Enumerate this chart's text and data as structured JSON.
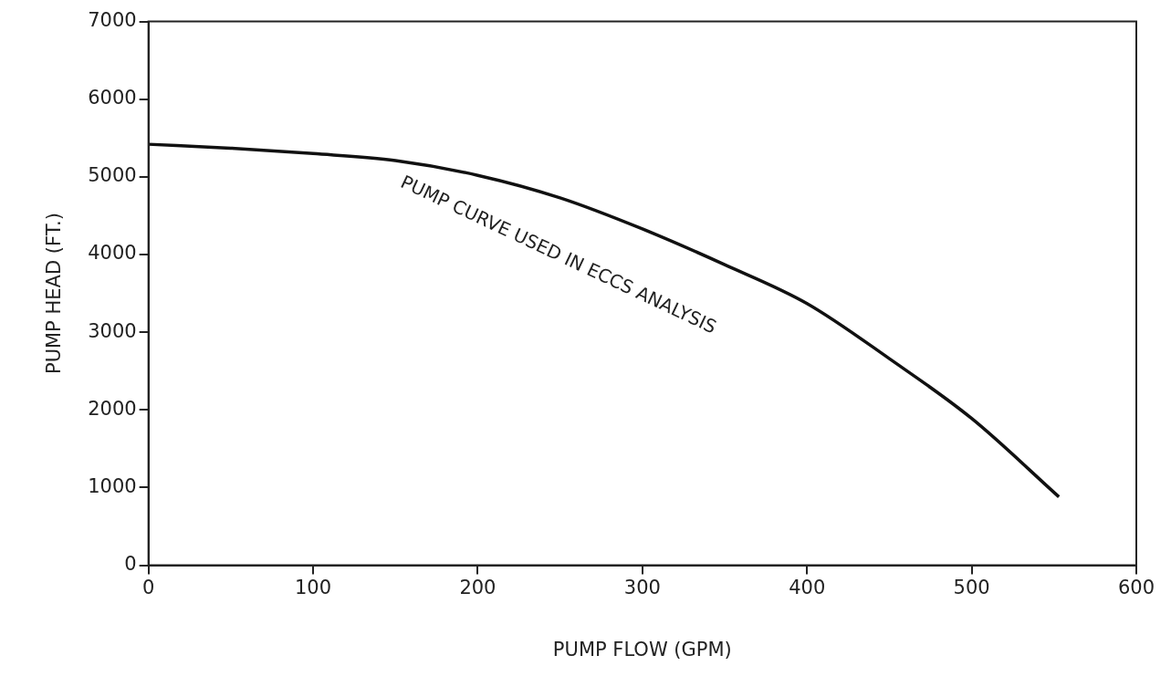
{
  "chart_data": {
    "type": "line",
    "xlabel": "PUMP FLOW (GPM)",
    "ylabel": "PUMP HEAD (FT.)",
    "x": [
      0,
      50,
      100,
      150,
      200,
      250,
      300,
      350,
      400,
      450,
      500,
      553
    ],
    "series": [
      {
        "color": "#111111",
        "values": [
          5420,
          5370,
          5300,
          5210,
          5020,
          4730,
          4330,
          3870,
          3370,
          2660,
          1890,
          880
        ]
      }
    ],
    "annotations": [
      "PUMP CURVE USED IN ECCS ANALYSIS"
    ],
    "xlim": [
      0,
      600
    ],
    "xticks": [
      0,
      100,
      200,
      300,
      400,
      500,
      600
    ],
    "ylim": [
      0,
      7000
    ],
    "yticks": [
      0,
      1000,
      2000,
      3000,
      4000,
      5000,
      6000,
      7000
    ],
    "grid": false,
    "legend": false,
    "marker": "none",
    "line_style": "solid"
  }
}
